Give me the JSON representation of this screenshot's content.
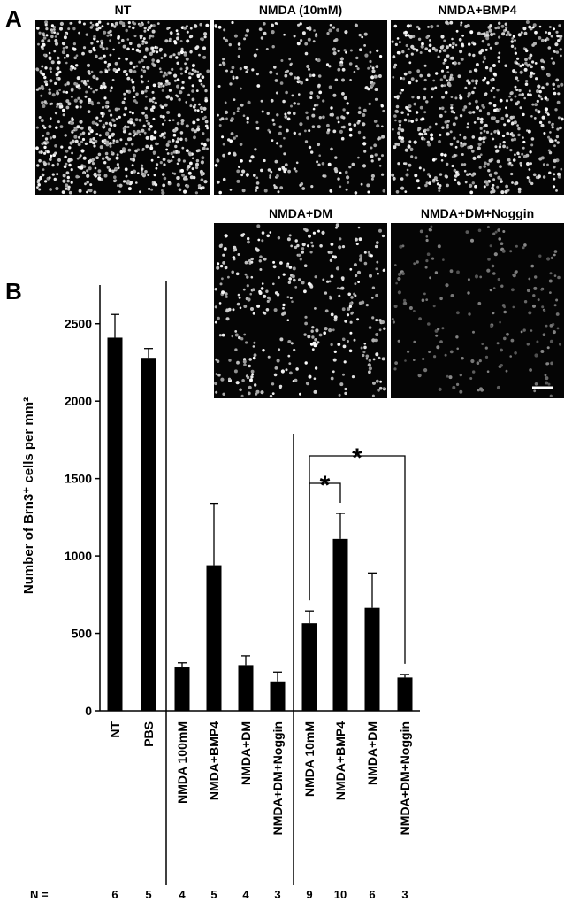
{
  "panel_labels": [
    "A",
    "B"
  ],
  "images": [
    {
      "label": "NT"
    },
    {
      "label": "NMDA (10mM)"
    },
    {
      "label": "NMDA+BMP4"
    },
    {
      "label": "NMDA+DM"
    },
    {
      "label": "NMDA+DM+Noggin"
    }
  ],
  "chart_data": {
    "type": "bar",
    "y_label": "Number of Brn3⁺ cells per mm²",
    "categories": [
      "NT",
      "PBS",
      "NMDA 100mM",
      "NMDA+BMP4",
      "NMDA+DM",
      "NMDA+DM+Noggin",
      "NMDA 10mM",
      "NMDA+BMP4",
      "NMDA+DM",
      "NMDA+DM+Noggin"
    ],
    "values": [
      2410,
      2280,
      280,
      940,
      295,
      190,
      565,
      1110,
      665,
      215
    ],
    "errors": [
      150,
      60,
      30,
      400,
      60,
      60,
      80,
      165,
      225,
      20
    ],
    "color": "#000000",
    "ylim": [
      0,
      2750
    ],
    "yticks": [
      0,
      500,
      1000,
      1500,
      2000,
      2500
    ],
    "n_label": "N =",
    "n": [
      6,
      5,
      4,
      5,
      4,
      3,
      9,
      10,
      6,
      3
    ],
    "comparisons": [
      {
        "from": 6,
        "to": 7,
        "label": "*"
      },
      {
        "from": 6,
        "to": 9,
        "label": "*"
      }
    ]
  }
}
